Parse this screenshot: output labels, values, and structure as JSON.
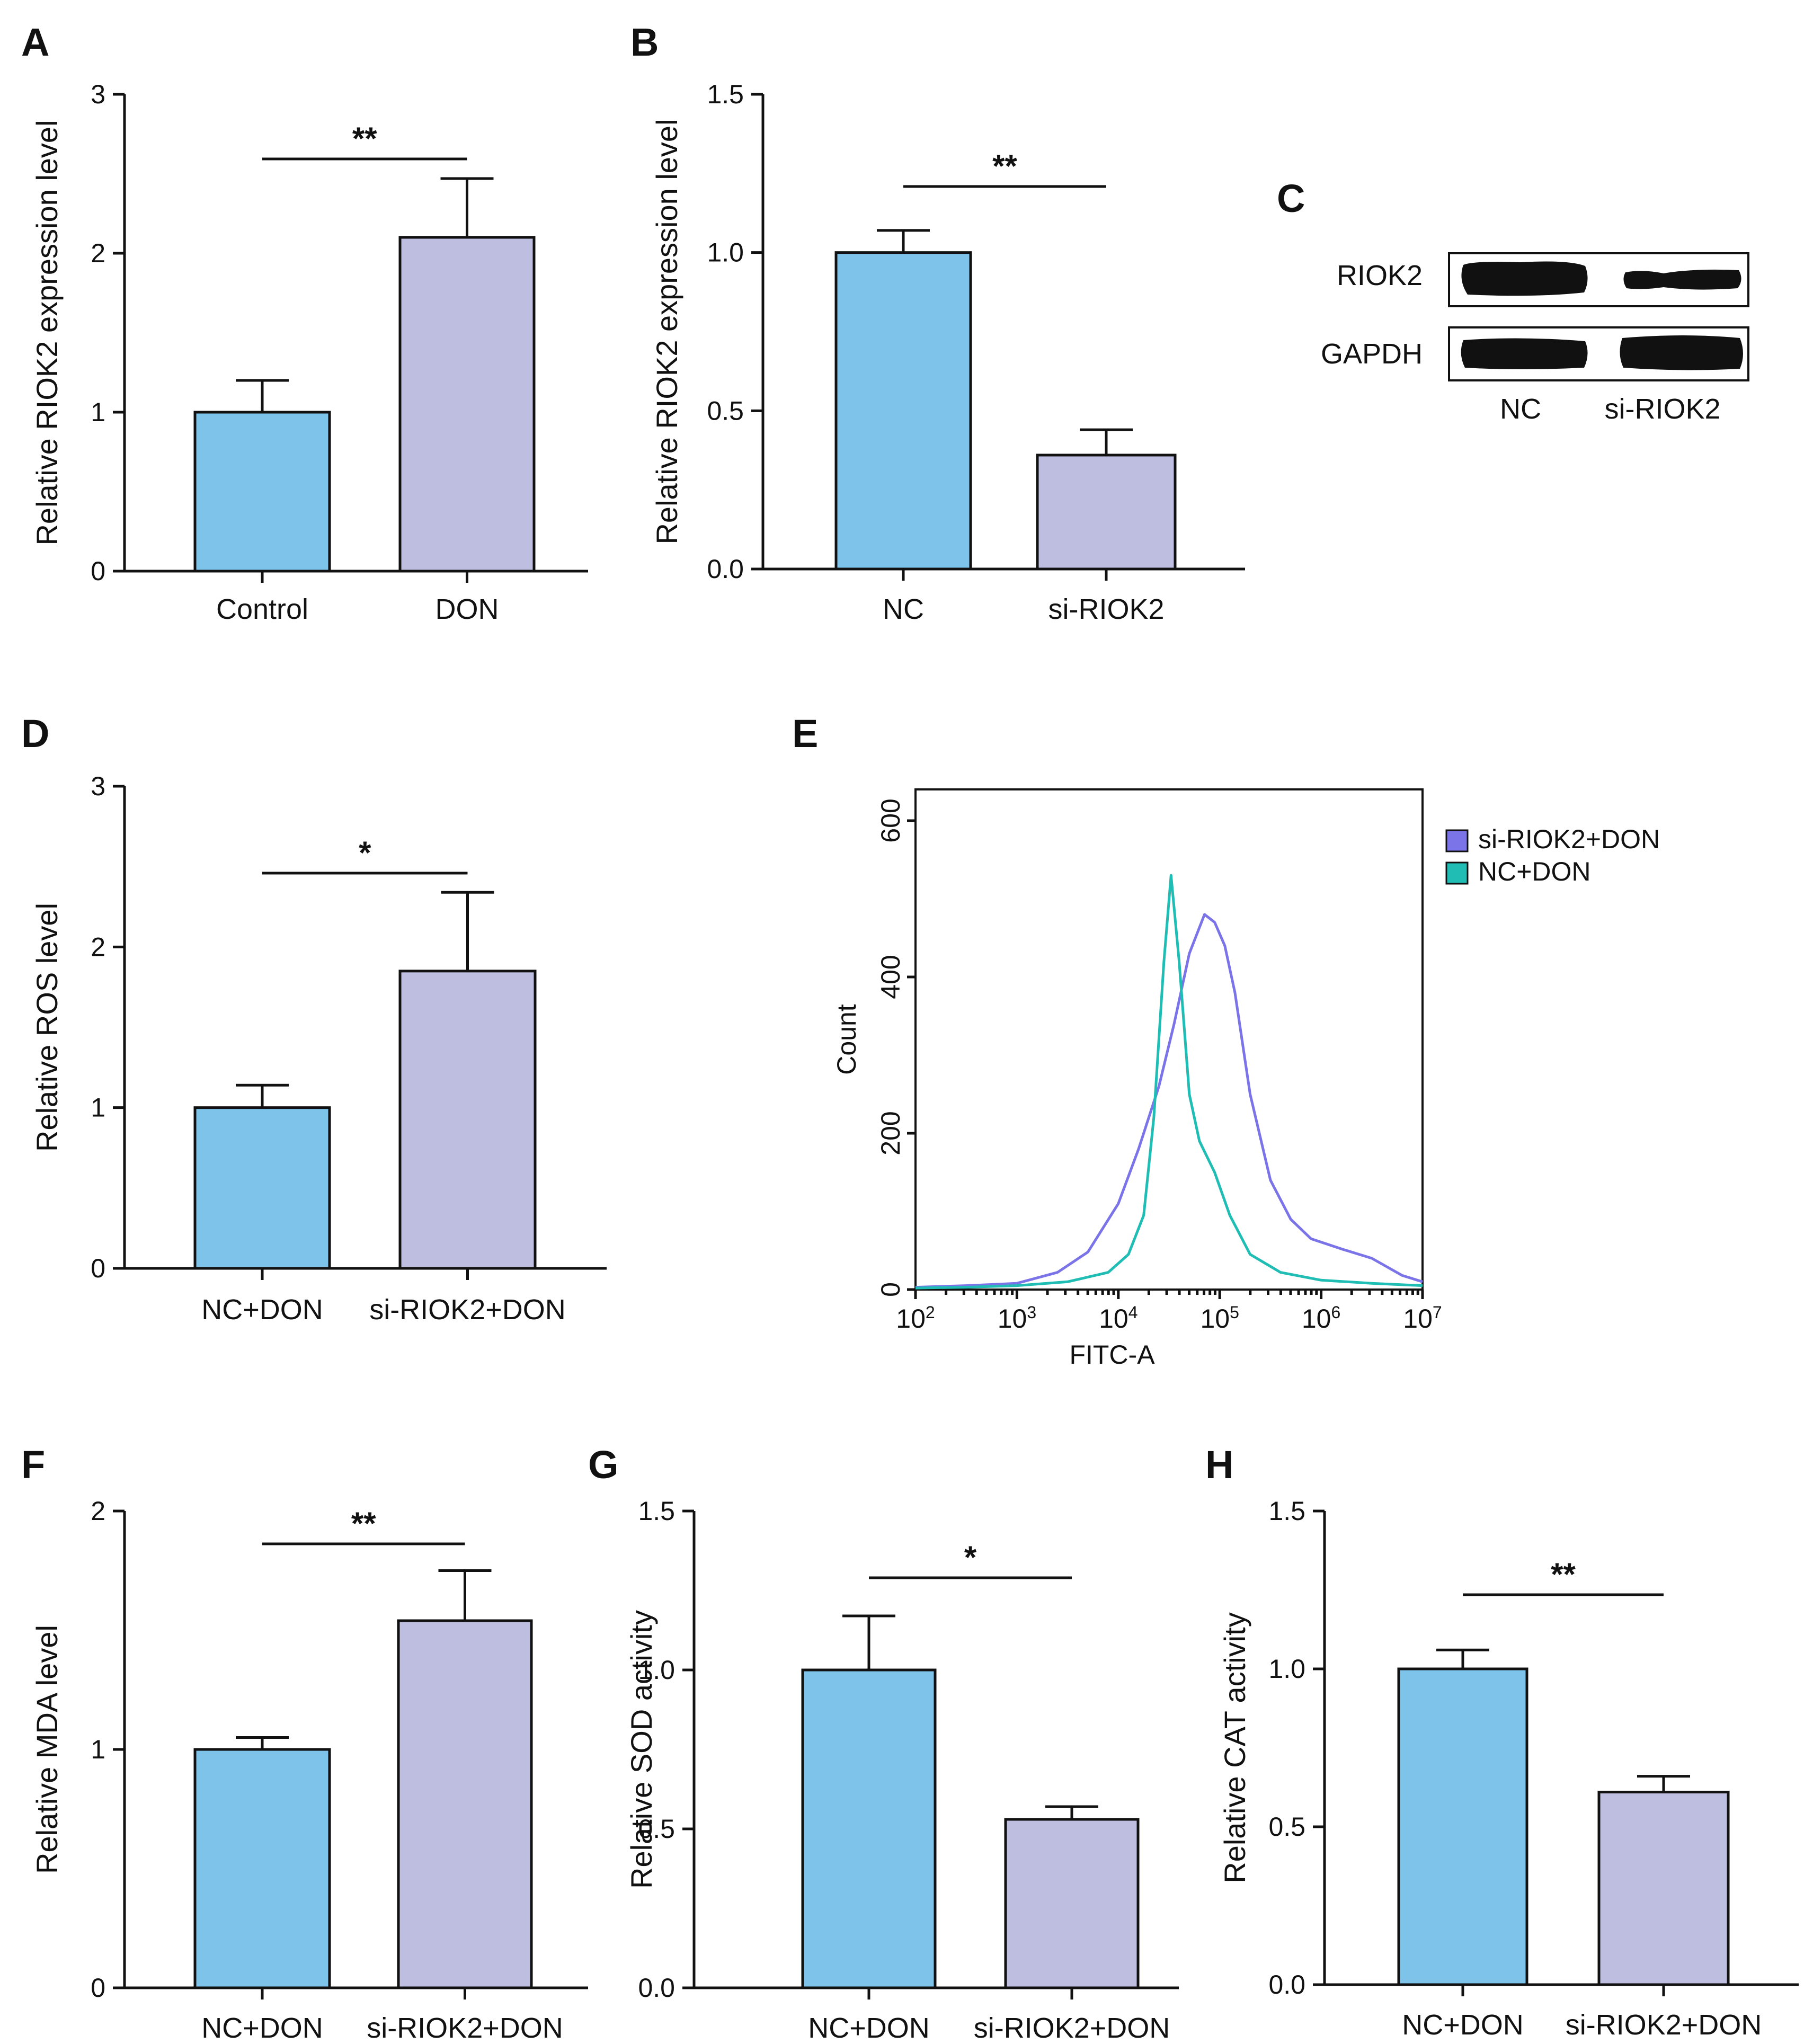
{
  "colors": {
    "bar1": "#7DC3EA",
    "bar2": "#BEBFE0",
    "hist_si": "#7B74E8",
    "hist_nc": "#1FBDB4"
  },
  "chart_data": [
    {
      "id": "A",
      "type": "bar",
      "letter": "A",
      "categories": [
        "Control",
        "DON"
      ],
      "values": [
        1.0,
        2.1
      ],
      "errors": [
        0.2,
        0.37
      ],
      "ylabel": "Relative RIOK2 expression level",
      "ylim": [
        0,
        3
      ],
      "yticks": [
        "0",
        "1",
        "2",
        "3"
      ],
      "significance": "**"
    },
    {
      "id": "B",
      "type": "bar",
      "letter": "B",
      "categories": [
        "NC",
        "si-RIOK2"
      ],
      "values": [
        1.0,
        0.36
      ],
      "errors": [
        0.07,
        0.08
      ],
      "ylabel": "Relative RIOK2 expression level",
      "ylim": [
        0,
        1.5
      ],
      "yticks": [
        "0.0",
        "0.5",
        "1.0",
        "1.5"
      ],
      "significance": "**"
    },
    {
      "id": "C",
      "type": "blot",
      "letter": "C",
      "rows": [
        "RIOK2",
        "GAPDH"
      ],
      "lanes": [
        "NC",
        "si-RIOK2"
      ]
    },
    {
      "id": "D",
      "type": "bar",
      "letter": "D",
      "categories": [
        "NC+DON",
        "si-RIOK2+DON"
      ],
      "values": [
        1.0,
        1.85
      ],
      "errors": [
        0.14,
        0.49
      ],
      "ylabel": "Relative ROS level",
      "ylim": [
        0,
        3
      ],
      "yticks": [
        "0",
        "1",
        "2",
        "3"
      ],
      "significance": "*"
    },
    {
      "id": "E",
      "type": "line",
      "letter": "E",
      "xlabel": "FITC-A",
      "ylabel": "Count",
      "xscale": "log",
      "xlim_exp": [
        2,
        7
      ],
      "xticks": [
        "10",
        "10",
        "10",
        "10",
        "10",
        "10"
      ],
      "xtick_exponents": [
        "2",
        "3",
        "4",
        "5",
        "6",
        "7"
      ],
      "ylim": [
        0,
        640
      ],
      "yticks": [
        "0",
        "200",
        "400",
        "600"
      ],
      "legend_position": "right",
      "series": [
        {
          "name": "si-RIOK2+DON",
          "x_log10": [
            2.0,
            2.5,
            3.0,
            3.4,
            3.7,
            4.0,
            4.2,
            4.4,
            4.55,
            4.7,
            4.85,
            4.95,
            5.05,
            5.15,
            5.3,
            5.5,
            5.7,
            5.9,
            6.2,
            6.5,
            6.8,
            7.0
          ],
          "values": [
            3,
            5,
            8,
            22,
            48,
            110,
            180,
            260,
            340,
            430,
            480,
            470,
            440,
            380,
            250,
            140,
            90,
            65,
            52,
            40,
            18,
            10
          ]
        },
        {
          "name": "NC+DON",
          "x_log10": [
            2.0,
            2.5,
            3.0,
            3.5,
            3.9,
            4.1,
            4.25,
            4.35,
            4.45,
            4.52,
            4.6,
            4.7,
            4.8,
            4.95,
            5.1,
            5.3,
            5.6,
            6.0,
            6.5,
            7.0
          ],
          "values": [
            2,
            3,
            5,
            10,
            22,
            45,
            95,
            220,
            420,
            530,
            420,
            250,
            190,
            150,
            95,
            45,
            22,
            12,
            8,
            5
          ]
        }
      ]
    },
    {
      "id": "F",
      "type": "bar",
      "letter": "F",
      "categories": [
        "NC+DON",
        "si-RIOK2+DON"
      ],
      "values": [
        1.0,
        1.54
      ],
      "errors": [
        0.05,
        0.21
      ],
      "ylabel": "Relative MDA  level",
      "ylim": [
        0,
        2
      ],
      "yticks": [
        "0",
        "1",
        "2"
      ],
      "significance": "**"
    },
    {
      "id": "G",
      "type": "bar",
      "letter": "G",
      "categories": [
        "NC+DON",
        "si-RIOK2+DON"
      ],
      "values": [
        1.0,
        0.53
      ],
      "errors": [
        0.17,
        0.04
      ],
      "ylabel": "Relative SOD  activity",
      "ylim": [
        0,
        1.5
      ],
      "yticks": [
        "0.0",
        "0.5",
        "1.0",
        "1.5"
      ],
      "significance": "*"
    },
    {
      "id": "H",
      "type": "bar",
      "letter": "H",
      "categories": [
        "NC+DON",
        "si-RIOK2+DON"
      ],
      "values": [
        1.0,
        0.61
      ],
      "errors": [
        0.06,
        0.05
      ],
      "ylabel": "Relative CAT  activity",
      "ylim": [
        0,
        1.5
      ],
      "yticks": [
        "0.0",
        "0.5",
        "1.0",
        "1.5"
      ],
      "significance": "**"
    }
  ]
}
